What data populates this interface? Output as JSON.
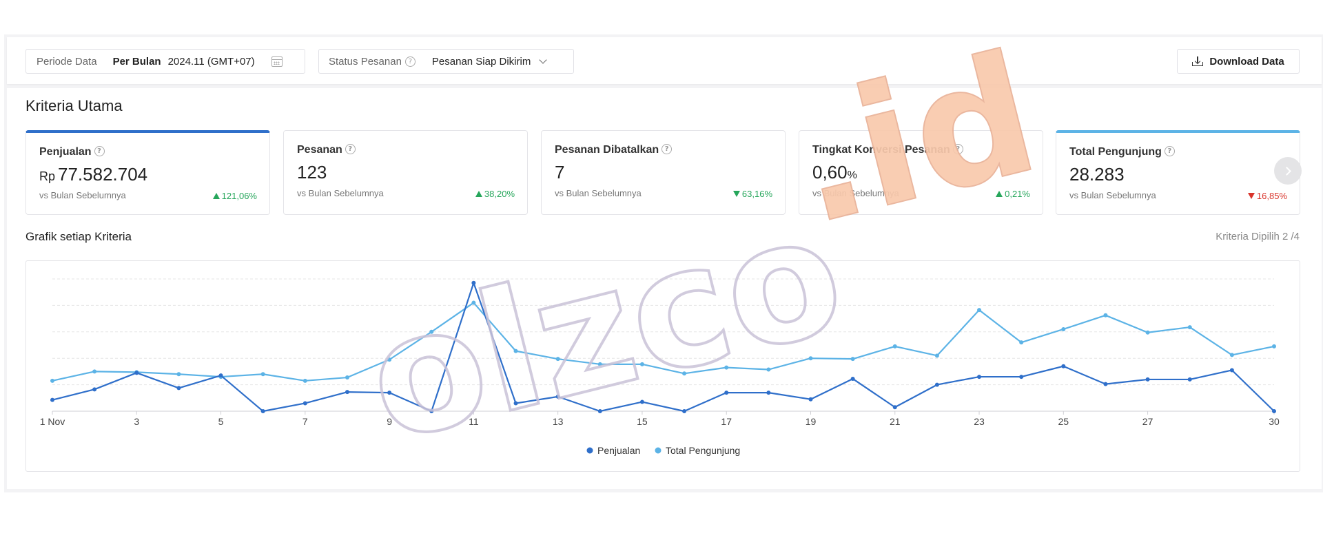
{
  "filters": {
    "periode_label": "Periode Data",
    "periode_type": "Per Bulan",
    "periode_value": "2024.11 (GMT+07)",
    "status_label": "Status Pesanan",
    "status_value": "Pesanan Siap Dikirim",
    "download_label": "Download Data"
  },
  "section_title": "Kriteria Utama",
  "cards": [
    {
      "title": "Penjualan",
      "prefix": "Rp",
      "value": "77.582.704",
      "suffix": "",
      "subtitle": "vs Bulan Sebelumnya",
      "change": "121,06%",
      "direction": "up"
    },
    {
      "title": "Pesanan",
      "prefix": "",
      "value": "123",
      "suffix": "",
      "subtitle": "vs Bulan Sebelumnya",
      "change": "38,20%",
      "direction": "up"
    },
    {
      "title": "Pesanan Dibatalkan",
      "prefix": "",
      "value": "7",
      "suffix": "",
      "subtitle": "vs Bulan Sebelumnya",
      "change": "63,16%",
      "direction": "down-good"
    },
    {
      "title": "Tingkat Konversi Pesanan",
      "prefix": "",
      "value": "0,60",
      "suffix": "%",
      "subtitle": "vs Bulan Sebelumnya",
      "change": "0,21%",
      "direction": "up"
    },
    {
      "title": "Total Pengunjung",
      "prefix": "",
      "value": "28.283",
      "suffix": "",
      "subtitle": "vs Bulan Sebelumnya",
      "change": "16,85%",
      "direction": "down"
    }
  ],
  "chart_section": {
    "title": "Grafik setiap Kriteria",
    "selected_info": "Kriteria Dipilih 2 /4"
  },
  "chart_data": {
    "type": "line",
    "x": [
      1,
      2,
      3,
      4,
      5,
      6,
      7,
      8,
      9,
      10,
      11,
      12,
      13,
      14,
      15,
      16,
      17,
      18,
      19,
      20,
      21,
      22,
      23,
      24,
      25,
      26,
      27,
      28,
      29,
      30
    ],
    "x_tick_labels": [
      "1 Nov",
      "3",
      "5",
      "7",
      "9",
      "11",
      "13",
      "15",
      "17",
      "19",
      "21",
      "23",
      "25",
      "27",
      "30"
    ],
    "x_tick_values": [
      1,
      3,
      5,
      7,
      9,
      11,
      13,
      15,
      17,
      19,
      21,
      23,
      25,
      27,
      30
    ],
    "series": [
      {
        "name": "Penjualan",
        "color": "#2f6fca",
        "values": [
          8.5,
          16.5,
          29,
          17.5,
          27,
          0,
          6,
          14.5,
          14,
          0,
          97,
          6,
          11,
          0,
          7,
          0,
          14,
          14,
          9,
          24.5,
          3,
          20,
          26,
          26,
          34,
          20.5,
          24,
          24,
          31,
          0
        ]
      },
      {
        "name": "Total Pengunjung",
        "color": "#5cb3e6",
        "values": [
          23,
          30,
          29.5,
          28,
          26,
          28,
          23,
          25.5,
          39,
          60,
          82,
          45.5,
          39.5,
          35.5,
          35.5,
          28.5,
          33,
          31.5,
          40,
          39.5,
          49,
          42,
          76.5,
          52,
          62,
          72.5,
          59.5,
          63.5,
          42.5,
          49
        ]
      }
    ],
    "ylim": [
      0,
      100
    ],
    "grid": true,
    "legend_placement": "bottom-center",
    "legend": [
      "Penjualan",
      "Total Pengunjung"
    ]
  },
  "watermark": {
    "part1": "olzco",
    "part2": ".id",
    "color_outline": "#c9c2d8",
    "color_fill": "#f9c9ac"
  }
}
